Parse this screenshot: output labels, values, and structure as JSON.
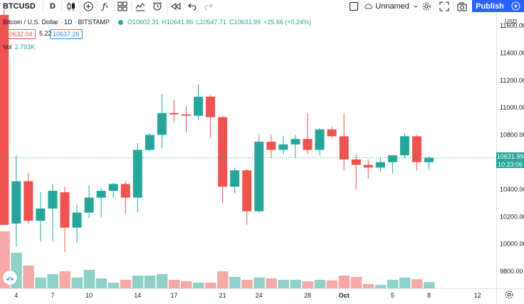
{
  "toolbar": {
    "symbol": "BTCUSD",
    "interval": "D",
    "layout_name": "Unnamed",
    "publish_label": "Publish"
  },
  "legend": {
    "title": "Bitcoin / U.S. Dollar · 1D · BITSTAMP",
    "open": "O10602.31",
    "high": "H10641.86",
    "low": "L10547.71",
    "close": "C10631.99",
    "change": "+25.66 (+0.24%)",
    "sell_price": "10632.04",
    "spread": "5.22",
    "buy_price": "10637.26",
    "vol_label": "Vol",
    "vol_value": "2.793K"
  },
  "price_axis": {
    "currency": "USD",
    "last_price": "10631.99",
    "countdown": "10:23:06"
  },
  "colors": {
    "up": "#26a69a",
    "down": "#ef5350",
    "up_vol": "#8fd1c9",
    "down_vol": "#f5a9a7",
    "accent": "#2962ff"
  },
  "icons": [
    "candles-icon",
    "add-compare-icon",
    "indicators-icon",
    "templates-icon",
    "alert-icon",
    "replay-icon",
    "undo-icon",
    "redo-icon",
    "snapshot-icon",
    "fullscreen-icon",
    "settings-icon"
  ],
  "chart_data": {
    "type": "candlestick",
    "title": "Bitcoin / U.S. Dollar · 1D · BITSTAMP",
    "y_ticks": [
      11600,
      11400,
      11200,
      11000,
      10800,
      10600,
      10400,
      10200,
      10000,
      9800
    ],
    "y_tick_labels": [
      "11600.00",
      "11400.00",
      "11200.00",
      "11000.00",
      "10800.00",
      "10600.00",
      "10400.00",
      "10200.00",
      "10000.00",
      "9800.00"
    ],
    "ylim": [
      9675,
      11700
    ],
    "x_tick_labels": [
      {
        "label": "4",
        "day": 4
      },
      {
        "label": "7",
        "day": 7
      },
      {
        "label": "10",
        "day": 10
      },
      {
        "label": "14",
        "day": 14
      },
      {
        "label": "17",
        "day": 17
      },
      {
        "label": "21",
        "day": 21
      },
      {
        "label": "24",
        "day": 24
      },
      {
        "label": "28",
        "day": 28
      },
      {
        "label": "Oct",
        "day": 31
      },
      {
        "label": "5",
        "day": 35
      },
      {
        "label": "8",
        "day": 38
      },
      {
        "label": "12",
        "day": 42
      }
    ],
    "candles": [
      {
        "day": 3,
        "o": 11680,
        "h": 11720,
        "l": 10140,
        "c": 10140,
        "v": 2.0
      },
      {
        "day": 4,
        "o": 10150,
        "h": 10650,
        "l": 9980,
        "c": 10460,
        "v": 1.25
      },
      {
        "day": 5,
        "o": 10460,
        "h": 10520,
        "l": 10150,
        "c": 10170,
        "v": 0.8
      },
      {
        "day": 6,
        "o": 10170,
        "h": 10380,
        "l": 10020,
        "c": 10260,
        "v": 0.38
      },
      {
        "day": 7,
        "o": 10260,
        "h": 10440,
        "l": 10020,
        "c": 10390,
        "v": 0.5
      },
      {
        "day": 8,
        "o": 10380,
        "h": 10420,
        "l": 9940,
        "c": 10120,
        "v": 0.6
      },
      {
        "day": 9,
        "o": 10120,
        "h": 10290,
        "l": 10010,
        "c": 10230,
        "v": 0.38
      },
      {
        "day": 10,
        "o": 10230,
        "h": 10430,
        "l": 10190,
        "c": 10340,
        "v": 0.65
      },
      {
        "day": 11,
        "o": 10340,
        "h": 10410,
        "l": 10200,
        "c": 10390,
        "v": 0.35
      },
      {
        "day": 12,
        "o": 10390,
        "h": 10450,
        "l": 10340,
        "c": 10440,
        "v": 0.2
      },
      {
        "day": 13,
        "o": 10440,
        "h": 10460,
        "l": 10220,
        "c": 10340,
        "v": 0.3
      },
      {
        "day": 14,
        "o": 10340,
        "h": 10740,
        "l": 10230,
        "c": 10690,
        "v": 0.45
      },
      {
        "day": 15,
        "o": 10690,
        "h": 10810,
        "l": 10680,
        "c": 10800,
        "v": 0.45
      },
      {
        "day": 16,
        "o": 10800,
        "h": 11100,
        "l": 10700,
        "c": 10960,
        "v": 0.5
      },
      {
        "day": 17,
        "o": 10960,
        "h": 11060,
        "l": 10890,
        "c": 10950,
        "v": 0.3
      },
      {
        "day": 18,
        "o": 10950,
        "h": 11010,
        "l": 10820,
        "c": 10940,
        "v": 0.25
      },
      {
        "day": 19,
        "o": 10940,
        "h": 11170,
        "l": 10910,
        "c": 11080,
        "v": 0.2
      },
      {
        "day": 20,
        "o": 11080,
        "h": 11090,
        "l": 10780,
        "c": 10930,
        "v": 0.2
      },
      {
        "day": 21,
        "o": 10930,
        "h": 10940,
        "l": 10300,
        "c": 10420,
        "v": 0.6
      },
      {
        "day": 22,
        "o": 10420,
        "h": 10560,
        "l": 10370,
        "c": 10540,
        "v": 0.4
      },
      {
        "day": 23,
        "o": 10540,
        "h": 10550,
        "l": 10140,
        "c": 10240,
        "v": 0.3
      },
      {
        "day": 24,
        "o": 10240,
        "h": 10800,
        "l": 10230,
        "c": 10750,
        "v": 0.38
      },
      {
        "day": 25,
        "o": 10750,
        "h": 10800,
        "l": 10630,
        "c": 10690,
        "v": 0.35
      },
      {
        "day": 26,
        "o": 10690,
        "h": 10790,
        "l": 10660,
        "c": 10730,
        "v": 0.3
      },
      {
        "day": 27,
        "o": 10730,
        "h": 10800,
        "l": 10630,
        "c": 10770,
        "v": 0.3
      },
      {
        "day": 28,
        "o": 10770,
        "h": 10960,
        "l": 10660,
        "c": 10690,
        "v": 0.25
      },
      {
        "day": 29,
        "o": 10690,
        "h": 10850,
        "l": 10650,
        "c": 10840,
        "v": 0.3
      },
      {
        "day": 30,
        "o": 10840,
        "h": 10860,
        "l": 10780,
        "c": 10790,
        "v": 0.28
      },
      {
        "day": 31,
        "o": 10790,
        "h": 10960,
        "l": 10540,
        "c": 10620,
        "v": 0.45
      },
      {
        "day": 32,
        "o": 10620,
        "h": 10660,
        "l": 10400,
        "c": 10580,
        "v": 0.4
      },
      {
        "day": 33,
        "o": 10580,
        "h": 10620,
        "l": 10480,
        "c": 10560,
        "v": 0.15
      },
      {
        "day": 34,
        "o": 10560,
        "h": 10630,
        "l": 10530,
        "c": 10600,
        "v": 0.12
      },
      {
        "day": 35,
        "o": 10600,
        "h": 10640,
        "l": 10520,
        "c": 10650,
        "v": 0.3
      },
      {
        "day": 36,
        "o": 10650,
        "h": 10810,
        "l": 10630,
        "c": 10790,
        "v": 0.38
      },
      {
        "day": 37,
        "o": 10790,
        "h": 10800,
        "l": 10540,
        "c": 10600,
        "v": 0.32
      },
      {
        "day": 38,
        "o": 10600,
        "h": 10641.86,
        "l": 10547.71,
        "c": 10631.99,
        "v": 0.22
      }
    ]
  }
}
